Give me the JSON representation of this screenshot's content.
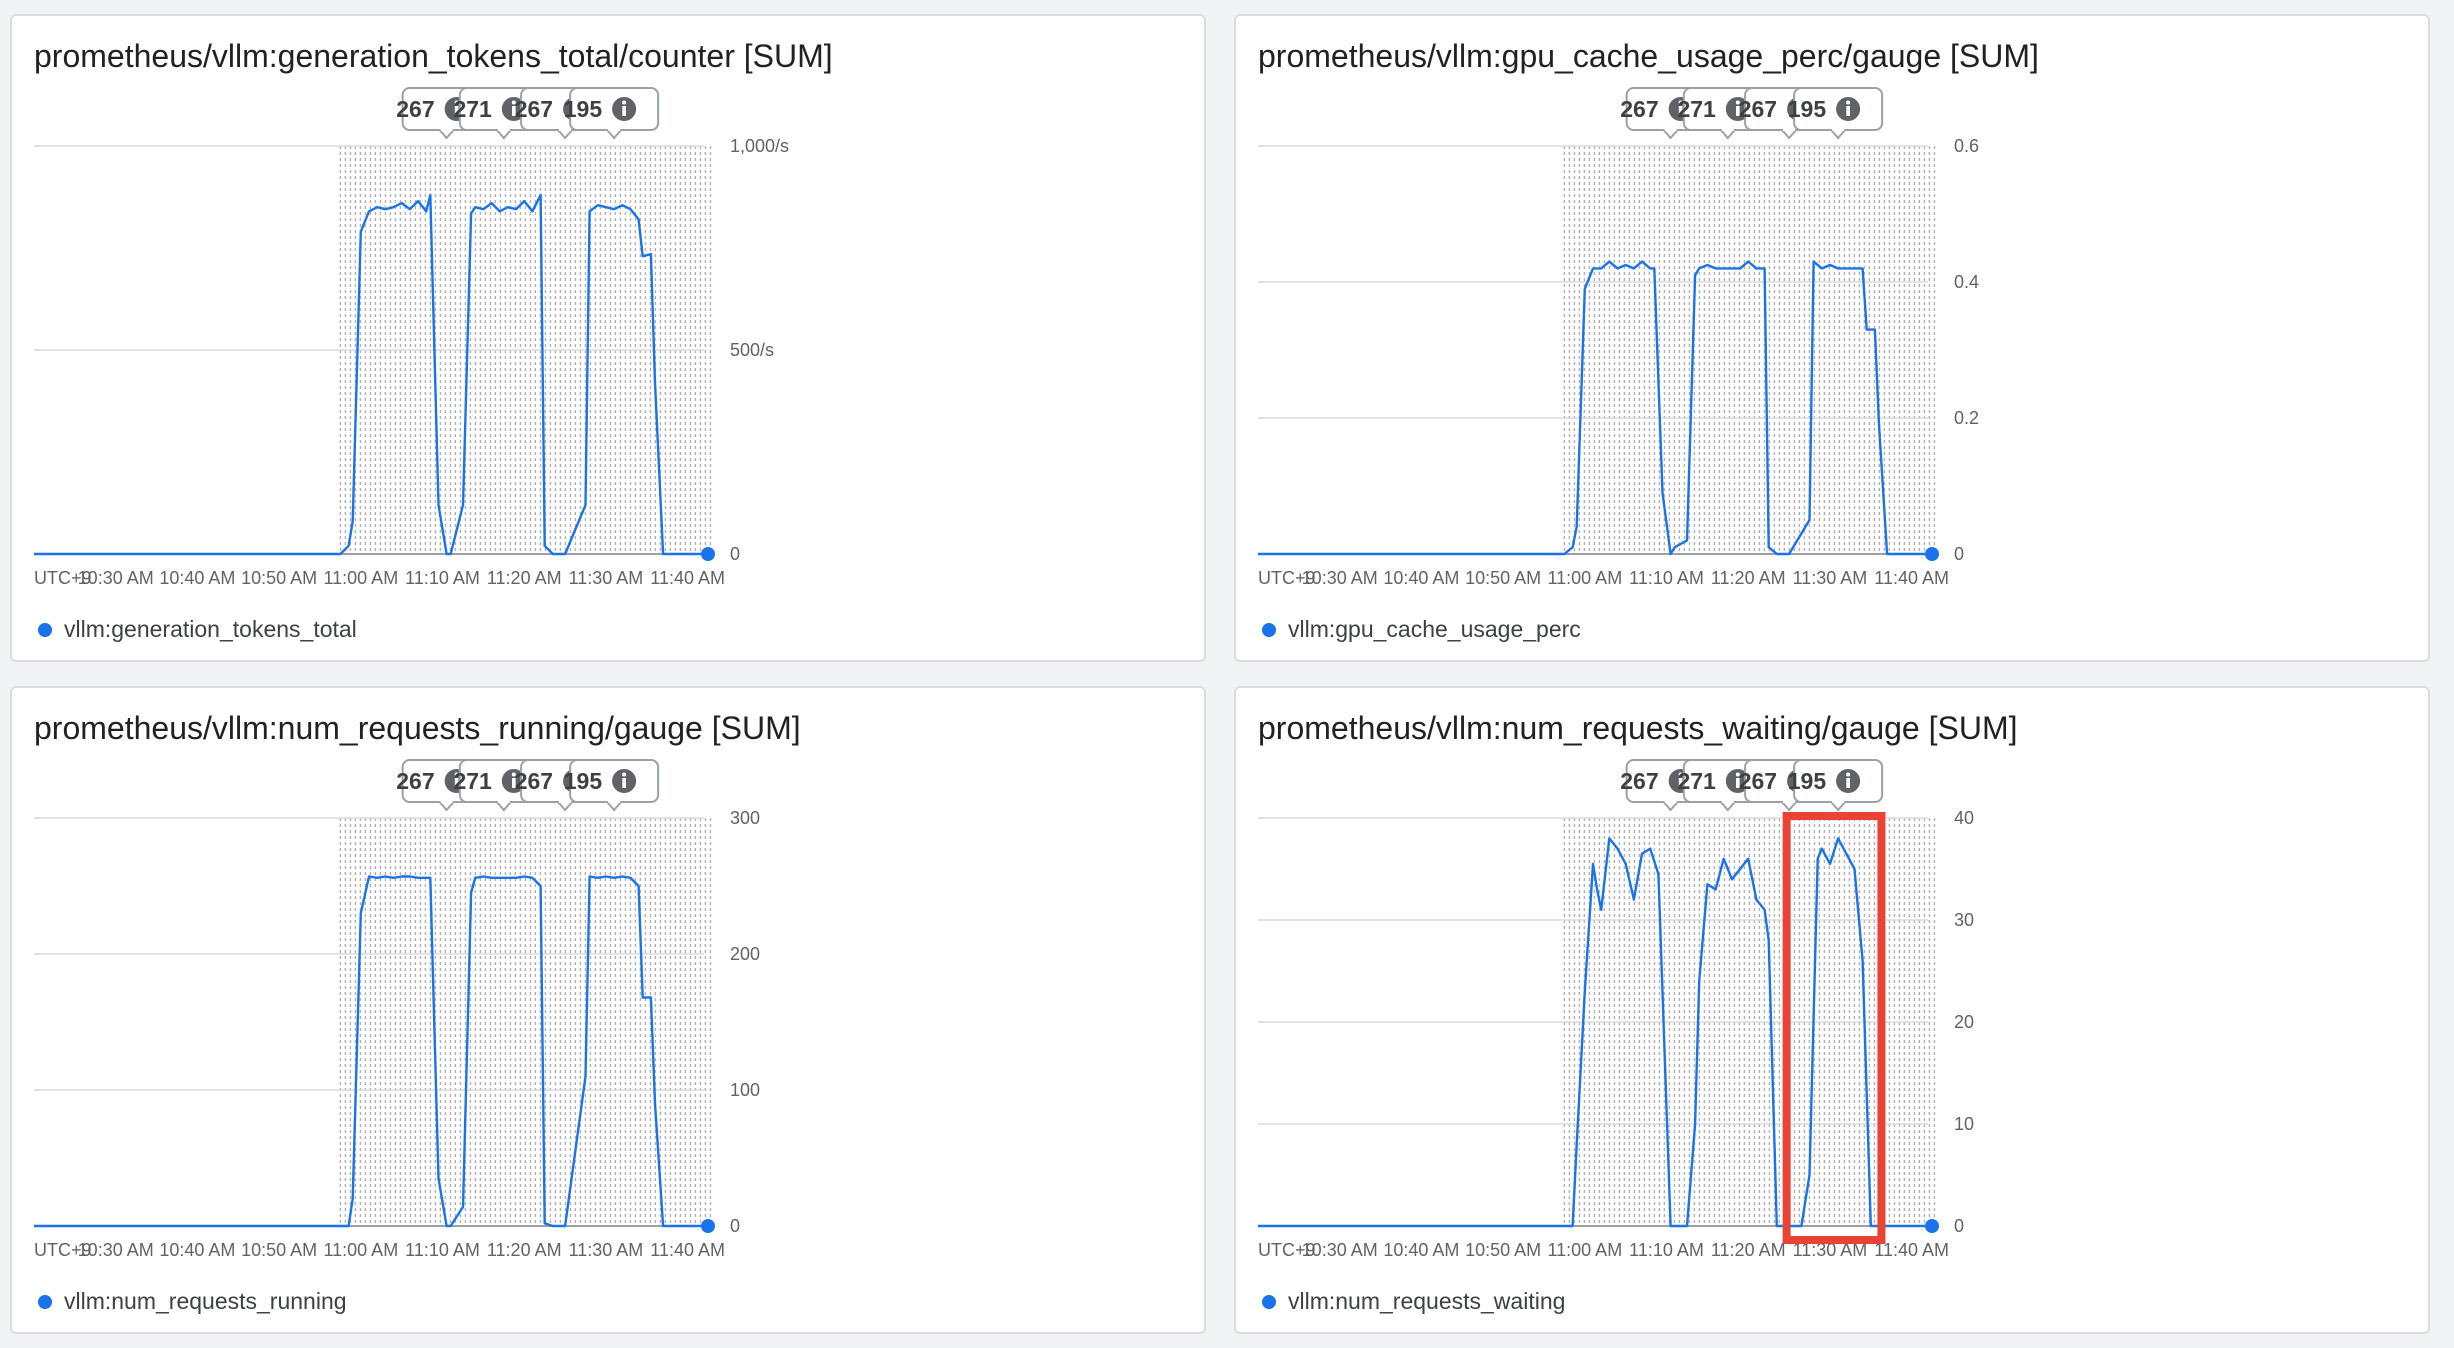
{
  "colors": {
    "series": "#1a73e8",
    "highlight_box": "#ea4335",
    "grid": "#dadce0",
    "axis": "#9aa0a6"
  },
  "x_axis": {
    "timezone_label": "UTC+9",
    "tick_labels": [
      "10:30 AM",
      "10:40 AM",
      "10:50 AM",
      "11:00 AM",
      "11:10 AM",
      "11:20 AM",
      "11:30 AM",
      "11:40 AM"
    ],
    "range_minutes": [
      10.5,
      12.0
    ]
  },
  "annotations": {
    "badges": [
      {
        "value": "267",
        "icon": "info-icon",
        "minute": 10.5
      },
      {
        "value": "271",
        "icon": "info-icon",
        "minute": 17.5
      },
      {
        "value": "267",
        "icon": "info-icon",
        "minute": 25.0
      },
      {
        "value": "195",
        "icon": "info-icon",
        "minute": 31.0
      }
    ],
    "hatched_range_minutes": [
      -2.5,
      23.5
    ]
  },
  "chart_data": [
    {
      "type": "line",
      "title": "prometheus/vllm:generation_tokens_total/counter [SUM]",
      "legend": "vllm:generation_tokens_total",
      "y_ticks": [
        "0",
        "500/s",
        "1,000/s"
      ],
      "ylim": [
        0,
        1000
      ],
      "grid": true,
      "series": [
        {
          "name": "vllm:generation_tokens_total",
          "x_minutes": [
            -40,
            -2.5,
            -1.5,
            -1.0,
            0.0,
            1.0,
            2.0,
            3.0,
            4.0,
            5.0,
            6.0,
            7.0,
            8.0,
            8.5,
            9.5,
            10.5,
            11.0,
            12.5,
            13.5,
            14.0,
            15.0,
            16.0,
            17.0,
            18.0,
            19.0,
            20.0,
            21.0,
            22.0,
            22.5,
            23.5,
            24.5,
            25.0,
            27.5,
            28.0,
            29.0,
            30.0,
            31.0,
            32.0,
            33.0,
            34.0,
            34.5,
            35.5,
            36.0,
            37.0,
            42.0
          ],
          "values": [
            0,
            0,
            20,
            80,
            790,
            840,
            850,
            845,
            850,
            860,
            845,
            865,
            840,
            880,
            120,
            0,
            0,
            120,
            835,
            850,
            845,
            860,
            840,
            850,
            845,
            865,
            840,
            880,
            20,
            0,
            0,
            0,
            120,
            840,
            855,
            850,
            845,
            855,
            845,
            820,
            730,
            735,
            420,
            0,
            0
          ]
        }
      ]
    },
    {
      "type": "line",
      "title": "prometheus/vllm:gpu_cache_usage_perc/gauge [SUM]",
      "legend": "vllm:gpu_cache_usage_perc",
      "y_ticks": [
        "0",
        "0.2",
        "0.4",
        "0.6"
      ],
      "ylim": [
        0,
        0.6
      ],
      "grid": true,
      "series": [
        {
          "name": "vllm:gpu_cache_usage_perc",
          "x_minutes": [
            -40,
            -2.5,
            -1.5,
            -1.0,
            0.0,
            1.0,
            2.0,
            3.0,
            4.0,
            5.0,
            6.0,
            7.0,
            8.0,
            8.5,
            9.5,
            10.5,
            11.0,
            12.5,
            13.5,
            14.0,
            15.0,
            16.0,
            17.0,
            18.0,
            19.0,
            20.0,
            21.0,
            22.0,
            22.5,
            23.5,
            24.5,
            25.0,
            27.5,
            28.0,
            29.0,
            30.0,
            31.0,
            32.0,
            33.0,
            34.0,
            34.5,
            35.5,
            36.0,
            37.0,
            42.0
          ],
          "values": [
            0,
            0,
            0.01,
            0.04,
            0.39,
            0.42,
            0.42,
            0.43,
            0.42,
            0.425,
            0.42,
            0.43,
            0.42,
            0.42,
            0.09,
            0.0,
            0.01,
            0.02,
            0.41,
            0.42,
            0.425,
            0.42,
            0.42,
            0.42,
            0.42,
            0.43,
            0.42,
            0.42,
            0.01,
            0.0,
            0.0,
            0.0,
            0.05,
            0.43,
            0.42,
            0.425,
            0.42,
            0.42,
            0.42,
            0.42,
            0.33,
            0.33,
            0.19,
            0.0,
            0.0
          ]
        }
      ]
    },
    {
      "type": "line",
      "title": "prometheus/vllm:num_requests_running/gauge [SUM]",
      "legend": "vllm:num_requests_running",
      "y_ticks": [
        "0",
        "100",
        "200",
        "300"
      ],
      "ylim": [
        0,
        300
      ],
      "grid": true,
      "series": [
        {
          "name": "vllm:num_requests_running",
          "x_minutes": [
            -40,
            -2.5,
            -1.5,
            -1.0,
            0.0,
            1.0,
            2.0,
            3.0,
            4.0,
            5.0,
            6.0,
            7.0,
            8.0,
            8.5,
            9.5,
            10.5,
            11.0,
            12.5,
            13.5,
            14.0,
            15.0,
            16.0,
            17.0,
            18.0,
            19.0,
            20.0,
            21.0,
            22.0,
            22.5,
            23.5,
            24.5,
            25.0,
            27.5,
            28.0,
            29.0,
            30.0,
            31.0,
            32.0,
            33.0,
            34.0,
            34.5,
            35.5,
            36.0,
            37.0,
            42.0
          ],
          "values": [
            0,
            0,
            0,
            20,
            230,
            257,
            256,
            257,
            256,
            257,
            257,
            256,
            256,
            256,
            35,
            0,
            0,
            14,
            245,
            256,
            257,
            256,
            256,
            256,
            256,
            257,
            256,
            250,
            2,
            0,
            0,
            0,
            110,
            257,
            256,
            257,
            256,
            257,
            256,
            250,
            168,
            168,
            90,
            0,
            0
          ]
        }
      ]
    },
    {
      "type": "line",
      "title": "prometheus/vllm:num_requests_waiting/gauge [SUM]",
      "legend": "vllm:num_requests_waiting",
      "y_ticks": [
        "0",
        "10",
        "20",
        "30",
        "40"
      ],
      "ylim": [
        0,
        40
      ],
      "grid": true,
      "series": [
        {
          "name": "vllm:num_requests_waiting",
          "x_minutes": [
            -40,
            -2.5,
            -1.5,
            -1.0,
            0.0,
            1.0,
            1.5,
            2.0,
            3.0,
            4.0,
            5.0,
            6.0,
            7.0,
            8.0,
            9.0,
            10.5,
            11.0,
            12.5,
            13.5,
            14.0,
            15.0,
            16.0,
            17.0,
            18.0,
            19.0,
            20.0,
            21.0,
            22.0,
            22.5,
            23.5,
            24.5,
            25.5,
            26.5,
            27.5,
            28.5,
            29.0,
            30.0,
            31.0,
            32.0,
            33.0,
            34.0,
            35.0,
            35.5,
            42.0
          ],
          "values": [
            0,
            0,
            0,
            8,
            23,
            35.5,
            33,
            31,
            38,
            37,
            35.5,
            32,
            36.5,
            37,
            34.5,
            0,
            0,
            0,
            10,
            24,
            33.5,
            33,
            36,
            34,
            35,
            36,
            32,
            31,
            28,
            0,
            0,
            0,
            0,
            5,
            36,
            37,
            35.5,
            38,
            36.5,
            35,
            26,
            0,
            0,
            0
          ]
        }
      ]
    }
  ]
}
